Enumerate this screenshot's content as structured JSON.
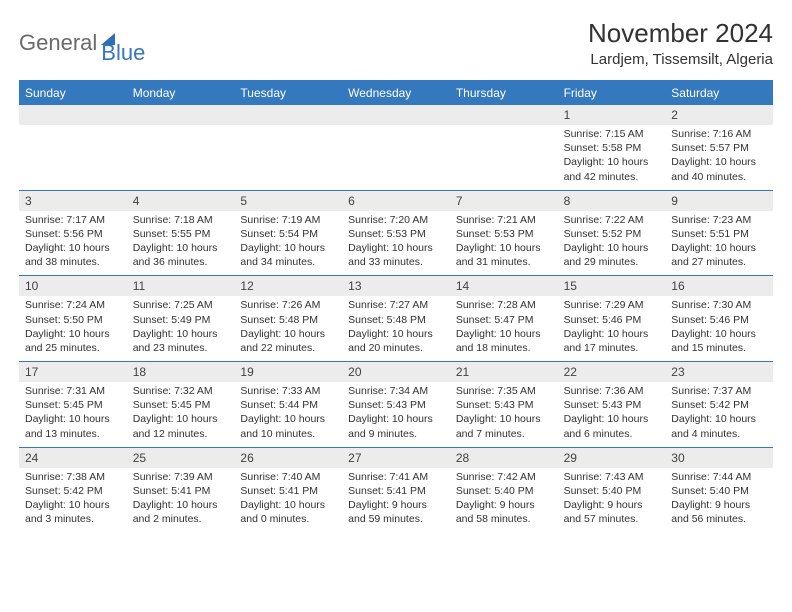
{
  "logo": {
    "part1": "General",
    "part2": "Blue"
  },
  "title": "November 2024",
  "location": "Lardjem, Tissemsilt, Algeria",
  "colors": {
    "header_blue": "#3478bd",
    "row_gray": "#ececec",
    "text": "#323232",
    "logo_gray": "#6a6a6a"
  },
  "dow": [
    "Sunday",
    "Monday",
    "Tuesday",
    "Wednesday",
    "Thursday",
    "Friday",
    "Saturday"
  ],
  "weeks": [
    [
      {
        "n": "",
        "sunrise": "",
        "sunset": "",
        "daylight": ""
      },
      {
        "n": "",
        "sunrise": "",
        "sunset": "",
        "daylight": ""
      },
      {
        "n": "",
        "sunrise": "",
        "sunset": "",
        "daylight": ""
      },
      {
        "n": "",
        "sunrise": "",
        "sunset": "",
        "daylight": ""
      },
      {
        "n": "",
        "sunrise": "",
        "sunset": "",
        "daylight": ""
      },
      {
        "n": "1",
        "sunrise": "Sunrise: 7:15 AM",
        "sunset": "Sunset: 5:58 PM",
        "daylight": "Daylight: 10 hours and 42 minutes."
      },
      {
        "n": "2",
        "sunrise": "Sunrise: 7:16 AM",
        "sunset": "Sunset: 5:57 PM",
        "daylight": "Daylight: 10 hours and 40 minutes."
      }
    ],
    [
      {
        "n": "3",
        "sunrise": "Sunrise: 7:17 AM",
        "sunset": "Sunset: 5:56 PM",
        "daylight": "Daylight: 10 hours and 38 minutes."
      },
      {
        "n": "4",
        "sunrise": "Sunrise: 7:18 AM",
        "sunset": "Sunset: 5:55 PM",
        "daylight": "Daylight: 10 hours and 36 minutes."
      },
      {
        "n": "5",
        "sunrise": "Sunrise: 7:19 AM",
        "sunset": "Sunset: 5:54 PM",
        "daylight": "Daylight: 10 hours and 34 minutes."
      },
      {
        "n": "6",
        "sunrise": "Sunrise: 7:20 AM",
        "sunset": "Sunset: 5:53 PM",
        "daylight": "Daylight: 10 hours and 33 minutes."
      },
      {
        "n": "7",
        "sunrise": "Sunrise: 7:21 AM",
        "sunset": "Sunset: 5:53 PM",
        "daylight": "Daylight: 10 hours and 31 minutes."
      },
      {
        "n": "8",
        "sunrise": "Sunrise: 7:22 AM",
        "sunset": "Sunset: 5:52 PM",
        "daylight": "Daylight: 10 hours and 29 minutes."
      },
      {
        "n": "9",
        "sunrise": "Sunrise: 7:23 AM",
        "sunset": "Sunset: 5:51 PM",
        "daylight": "Daylight: 10 hours and 27 minutes."
      }
    ],
    [
      {
        "n": "10",
        "sunrise": "Sunrise: 7:24 AM",
        "sunset": "Sunset: 5:50 PM",
        "daylight": "Daylight: 10 hours and 25 minutes."
      },
      {
        "n": "11",
        "sunrise": "Sunrise: 7:25 AM",
        "sunset": "Sunset: 5:49 PM",
        "daylight": "Daylight: 10 hours and 23 minutes."
      },
      {
        "n": "12",
        "sunrise": "Sunrise: 7:26 AM",
        "sunset": "Sunset: 5:48 PM",
        "daylight": "Daylight: 10 hours and 22 minutes."
      },
      {
        "n": "13",
        "sunrise": "Sunrise: 7:27 AM",
        "sunset": "Sunset: 5:48 PM",
        "daylight": "Daylight: 10 hours and 20 minutes."
      },
      {
        "n": "14",
        "sunrise": "Sunrise: 7:28 AM",
        "sunset": "Sunset: 5:47 PM",
        "daylight": "Daylight: 10 hours and 18 minutes."
      },
      {
        "n": "15",
        "sunrise": "Sunrise: 7:29 AM",
        "sunset": "Sunset: 5:46 PM",
        "daylight": "Daylight: 10 hours and 17 minutes."
      },
      {
        "n": "16",
        "sunrise": "Sunrise: 7:30 AM",
        "sunset": "Sunset: 5:46 PM",
        "daylight": "Daylight: 10 hours and 15 minutes."
      }
    ],
    [
      {
        "n": "17",
        "sunrise": "Sunrise: 7:31 AM",
        "sunset": "Sunset: 5:45 PM",
        "daylight": "Daylight: 10 hours and 13 minutes."
      },
      {
        "n": "18",
        "sunrise": "Sunrise: 7:32 AM",
        "sunset": "Sunset: 5:45 PM",
        "daylight": "Daylight: 10 hours and 12 minutes."
      },
      {
        "n": "19",
        "sunrise": "Sunrise: 7:33 AM",
        "sunset": "Sunset: 5:44 PM",
        "daylight": "Daylight: 10 hours and 10 minutes."
      },
      {
        "n": "20",
        "sunrise": "Sunrise: 7:34 AM",
        "sunset": "Sunset: 5:43 PM",
        "daylight": "Daylight: 10 hours and 9 minutes."
      },
      {
        "n": "21",
        "sunrise": "Sunrise: 7:35 AM",
        "sunset": "Sunset: 5:43 PM",
        "daylight": "Daylight: 10 hours and 7 minutes."
      },
      {
        "n": "22",
        "sunrise": "Sunrise: 7:36 AM",
        "sunset": "Sunset: 5:43 PM",
        "daylight": "Daylight: 10 hours and 6 minutes."
      },
      {
        "n": "23",
        "sunrise": "Sunrise: 7:37 AM",
        "sunset": "Sunset: 5:42 PM",
        "daylight": "Daylight: 10 hours and 4 minutes."
      }
    ],
    [
      {
        "n": "24",
        "sunrise": "Sunrise: 7:38 AM",
        "sunset": "Sunset: 5:42 PM",
        "daylight": "Daylight: 10 hours and 3 minutes."
      },
      {
        "n": "25",
        "sunrise": "Sunrise: 7:39 AM",
        "sunset": "Sunset: 5:41 PM",
        "daylight": "Daylight: 10 hours and 2 minutes."
      },
      {
        "n": "26",
        "sunrise": "Sunrise: 7:40 AM",
        "sunset": "Sunset: 5:41 PM",
        "daylight": "Daylight: 10 hours and 0 minutes."
      },
      {
        "n": "27",
        "sunrise": "Sunrise: 7:41 AM",
        "sunset": "Sunset: 5:41 PM",
        "daylight": "Daylight: 9 hours and 59 minutes."
      },
      {
        "n": "28",
        "sunrise": "Sunrise: 7:42 AM",
        "sunset": "Sunset: 5:40 PM",
        "daylight": "Daylight: 9 hours and 58 minutes."
      },
      {
        "n": "29",
        "sunrise": "Sunrise: 7:43 AM",
        "sunset": "Sunset: 5:40 PM",
        "daylight": "Daylight: 9 hours and 57 minutes."
      },
      {
        "n": "30",
        "sunrise": "Sunrise: 7:44 AM",
        "sunset": "Sunset: 5:40 PM",
        "daylight": "Daylight: 9 hours and 56 minutes."
      }
    ]
  ]
}
